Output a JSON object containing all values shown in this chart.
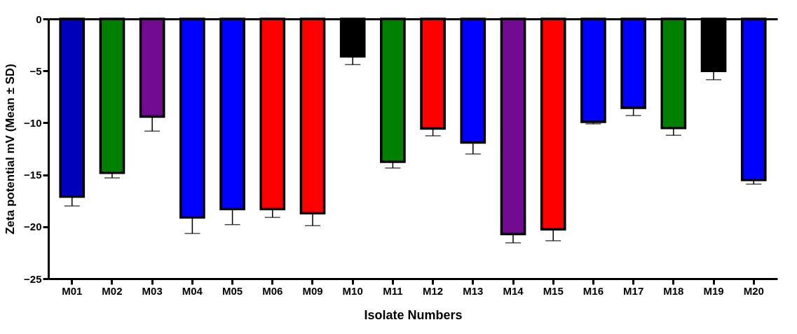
{
  "chart_data": {
    "type": "bar",
    "xlabel": "Isolate Numbers",
    "ylabel": "Zeta potential mV (Mean ± SD)",
    "categories": [
      "M01",
      "M02",
      "M03",
      "M04",
      "M05",
      "M06",
      "M09",
      "M10",
      "M11",
      "M12",
      "M13",
      "M14",
      "M15",
      "M16",
      "M17",
      "M18",
      "M19",
      "M20"
    ],
    "values": [
      -17.1,
      -14.8,
      -9.4,
      -19.1,
      -18.3,
      -18.3,
      -18.7,
      -3.6,
      -13.75,
      -10.55,
      -11.9,
      -20.7,
      -20.25,
      -9.9,
      -8.55,
      -10.5,
      -5.0,
      -15.5
    ],
    "errors": [
      [
        -18.0,
        -17.1
      ],
      [
        -15.3,
        -14.8
      ],
      [
        -10.8,
        -9.4
      ],
      [
        -20.65,
        -19.1
      ],
      [
        -19.8,
        -18.3
      ],
      [
        -19.1,
        -18.3
      ],
      [
        -19.9,
        -18.7
      ],
      [
        -4.4,
        -3.6
      ],
      [
        -14.35,
        -13.75
      ],
      [
        -11.25,
        -10.55
      ],
      [
        -13.0,
        -11.9
      ],
      [
        -21.55,
        -20.7
      ],
      [
        -21.35,
        -20.25
      ],
      [
        -10.1,
        -9.9
      ],
      [
        -9.3,
        -8.55
      ],
      [
        -11.2,
        -10.5
      ],
      [
        -5.85,
        -5.0
      ],
      [
        -15.9,
        -15.5
      ]
    ],
    "colors": [
      "#0000bb",
      "#008000",
      "#730b92",
      "#0000ff",
      "#0000ff",
      "#ff0000",
      "#ff0000",
      "#000000",
      "#008000",
      "#ff0000",
      "#0000ff",
      "#730b92",
      "#ff0000",
      "#0000ff",
      "#0000ff",
      "#008000",
      "#000000",
      "#0000ff"
    ],
    "ylim": [
      -25,
      0
    ],
    "yticks": [
      -25,
      -20,
      -15,
      -10,
      -5,
      0
    ],
    "grid": false
  }
}
